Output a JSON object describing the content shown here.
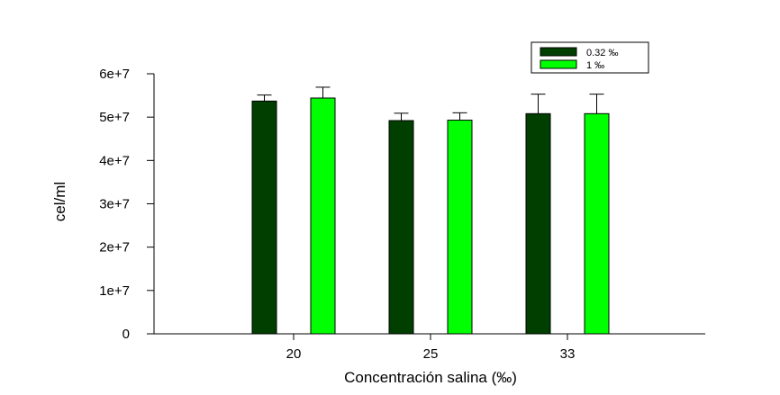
{
  "chart_data": {
    "type": "bar",
    "title": "",
    "xlabel": "Concentración salina (‰)",
    "ylabel": "cel/ml",
    "categories": [
      "20",
      "25",
      "33"
    ],
    "ylim": [
      0,
      60000000
    ],
    "yticks": [
      {
        "value": 0,
        "label": "0"
      },
      {
        "value": 10000000,
        "label": "1e+7"
      },
      {
        "value": 20000000,
        "label": "2e+7"
      },
      {
        "value": 30000000,
        "label": "3e+7"
      },
      {
        "value": 40000000,
        "label": "4e+7"
      },
      {
        "value": 50000000,
        "label": "5e+7"
      },
      {
        "value": 60000000,
        "label": "6e+7"
      }
    ],
    "grid": false,
    "legend_position": "top-right",
    "series": [
      {
        "name": "0.32 ‰",
        "color": "#003f00",
        "values": [
          53700000,
          49200000,
          50800000
        ],
        "errors": [
          1400000,
          1700000,
          4500000
        ]
      },
      {
        "name": "1 ‰",
        "color": "#00ff00",
        "values": [
          54400000,
          49300000,
          50800000
        ],
        "errors": [
          2500000,
          1700000,
          4500000
        ]
      }
    ]
  }
}
